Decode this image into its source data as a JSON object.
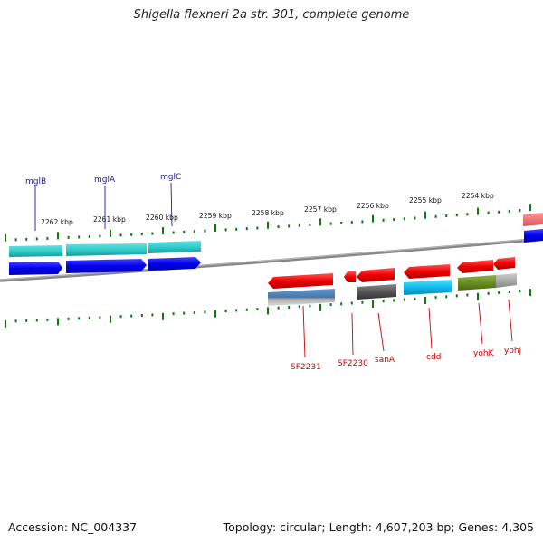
{
  "title": "Shigella flexneri 2a str. 301, complete genome",
  "footer": {
    "accession": "Accession: NC_004337",
    "summary": "Topology: circular; Length: 4,607,203 bp; Genes: 4,305"
  },
  "ruler": {
    "unit": "kbp",
    "labels": [
      "2262 kbp",
      "2261 kbp",
      "2260 kbp",
      "2259 kbp",
      "2258 kbp",
      "2257 kbp",
      "2256 kbp",
      "2255 kbp",
      "2254 kbp"
    ]
  },
  "genes": {
    "forward": [
      {
        "name": "mglB",
        "color": "#1a1aa0"
      },
      {
        "name": "mglA",
        "color": "#1a1aa0"
      },
      {
        "name": "mglC",
        "color": "#1a1aa0"
      }
    ],
    "reverse": [
      {
        "name": "SF2231",
        "color": "#cc0000"
      },
      {
        "name": "SF2230",
        "color": "#cc0000"
      },
      {
        "name": "sanA",
        "color": "#cc0000"
      },
      {
        "name": "cdd",
        "color": "#cc0000"
      },
      {
        "name": "yohK",
        "color": "#cc0000"
      },
      {
        "name": "yohJ",
        "color": "#cc0000"
      }
    ]
  },
  "colors": {
    "forward_cds": "#0000ee",
    "reverse_cds": "#ee0000",
    "cog_cyan": "#33cccc",
    "cog_steelblue": "#4477aa",
    "cog_gray": "#555555",
    "cog_skyblue": "#11bbee",
    "cog_olive": "#6b8e23",
    "cog_lightgray": "#aaaaaa",
    "cog_pink": "#ee7777",
    "backbone": "#888888",
    "tick": "#0a7a0a"
  }
}
